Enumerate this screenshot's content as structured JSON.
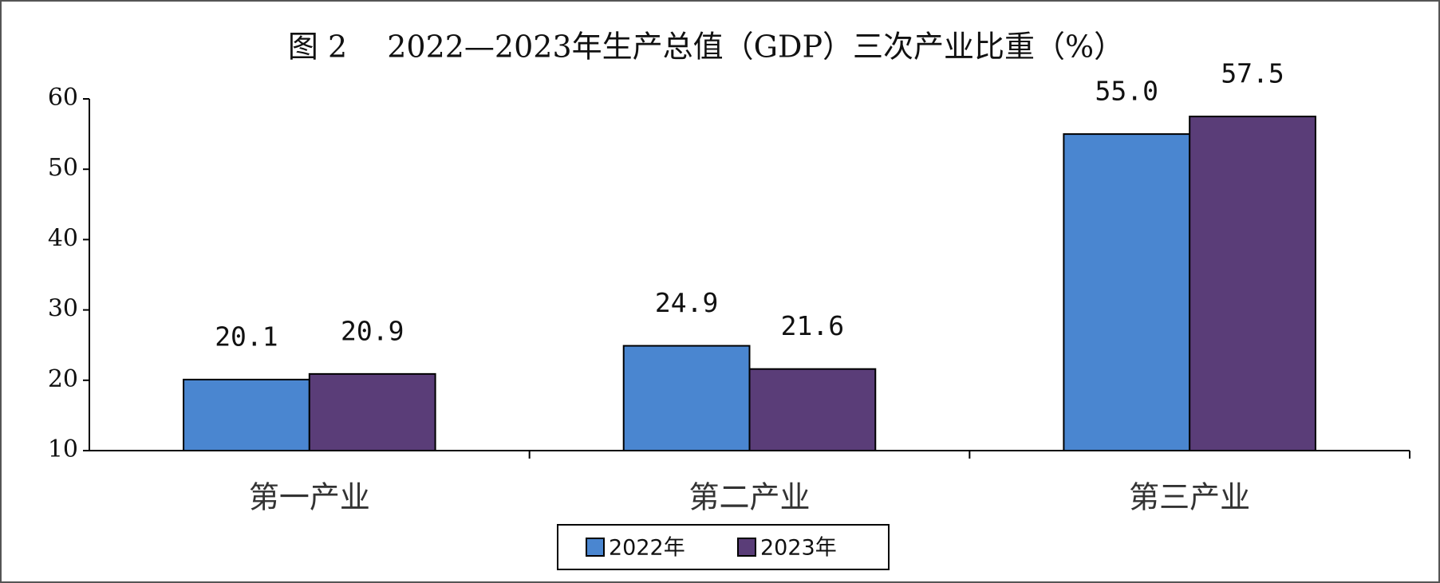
{
  "chart_data": {
    "type": "bar",
    "title": "图 2　 2022—2023年生产总值（GDP）三次产业比重（%）",
    "categories": [
      "第一产业",
      "第二产业",
      "第三产业"
    ],
    "series": [
      {
        "name": "2022年",
        "color": "#4a86d0",
        "values": [
          20.1,
          24.9,
          55.0
        ],
        "value_labels": [
          "20.1",
          "24.9",
          "55.0"
        ]
      },
      {
        "name": "2023年",
        "color": "#5a3d78",
        "values": [
          20.9,
          21.6,
          57.5
        ],
        "value_labels": [
          "20.9",
          "21.6",
          "57.5"
        ]
      }
    ],
    "ylim": [
      10,
      60
    ],
    "yticks": [
      10,
      20,
      30,
      40,
      50,
      60
    ],
    "grid": false,
    "legend": "bottom"
  }
}
